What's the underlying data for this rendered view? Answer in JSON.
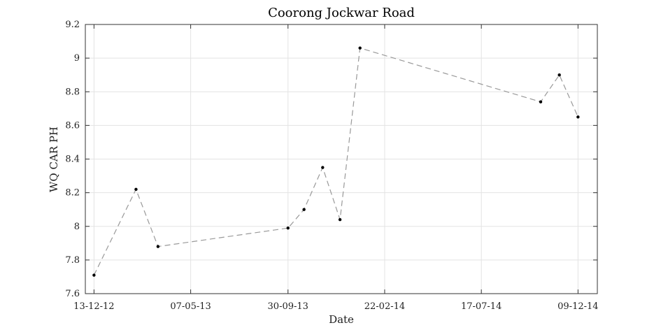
{
  "chart_data": {
    "type": "line",
    "title": "Coorong Jockwar Road",
    "xlabel": "Date",
    "ylabel": "WQ CAR PH",
    "ylim": [
      7.6,
      9.2
    ],
    "yticks": [
      7.6,
      7.8,
      8,
      8.2,
      8.4,
      8.6,
      8.8,
      9,
      9.2
    ],
    "xlim": [
      "2012-11-30",
      "2015-01-07"
    ],
    "xticks": [
      "2012-12-13",
      "2013-05-07",
      "2013-09-30",
      "2014-02-22",
      "2014-07-17",
      "2014-12-09"
    ],
    "xtick_labels": [
      "13-12-12",
      "07-05-13",
      "30-09-13",
      "22-02-14",
      "17-07-14",
      "09-12-14"
    ],
    "grid": true,
    "line_style": "dashed",
    "series": [
      {
        "color": "#999999",
        "marker_color": "#000000",
        "points": [
          {
            "x": "2012-12-13",
            "y": 7.71
          },
          {
            "x": "2013-02-14",
            "y": 8.22
          },
          {
            "x": "2013-03-19",
            "y": 7.88
          },
          {
            "x": "2013-09-30",
            "y": 7.99
          },
          {
            "x": "2013-10-24",
            "y": 8.1
          },
          {
            "x": "2013-11-21",
            "y": 8.35
          },
          {
            "x": "2013-12-17",
            "y": 8.04
          },
          {
            "x": "2014-01-16",
            "y": 9.06
          },
          {
            "x": "2014-10-14",
            "y": 8.74
          },
          {
            "x": "2014-11-11",
            "y": 8.9
          },
          {
            "x": "2014-12-09",
            "y": 8.65
          }
        ]
      }
    ]
  }
}
